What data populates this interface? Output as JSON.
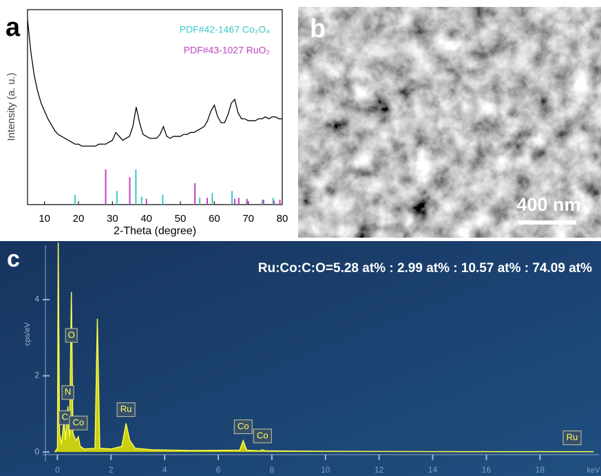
{
  "chart_data": [
    {
      "type": "line",
      "panel_label": "a",
      "ylabel": "Intensity (a. u.)",
      "xlabel": "2-Theta (degree)",
      "xlim": [
        5,
        80
      ],
      "xticks": [
        10,
        20,
        30,
        40,
        50,
        60,
        70,
        80
      ],
      "ylim": [
        0,
        100
      ],
      "color": "#000000",
      "x": [
        5,
        6,
        7,
        8,
        9,
        10,
        11,
        12,
        13,
        14,
        15,
        16,
        17,
        18,
        19,
        20,
        21,
        22,
        23,
        24,
        25,
        26,
        27,
        28,
        29,
        30,
        31,
        32,
        33,
        34,
        35,
        36,
        37,
        38,
        39,
        40,
        41,
        42,
        43,
        44,
        45,
        46,
        47,
        48,
        49,
        50,
        51,
        52,
        53,
        54,
        55,
        56,
        57,
        58,
        59,
        60,
        61,
        62,
        63,
        64,
        65,
        66,
        67,
        68,
        69,
        70,
        71,
        72,
        73,
        74,
        75,
        76,
        77,
        78,
        79,
        80
      ],
      "values": [
        95,
        78,
        66,
        58,
        52,
        48,
        44,
        41,
        38,
        36,
        35,
        34,
        33,
        32,
        31,
        31,
        30,
        30,
        30,
        30,
        30,
        31,
        31,
        31,
        32,
        33,
        37,
        35,
        33,
        34,
        35,
        40,
        50,
        42,
        36,
        35,
        34,
        34,
        34,
        36,
        40,
        35,
        34,
        35,
        35,
        35,
        36,
        36,
        37,
        37,
        38,
        39,
        40,
        43,
        48,
        51,
        45,
        42,
        42,
        46,
        52,
        54,
        47,
        44,
        44,
        43,
        43,
        43,
        44,
        44,
        45,
        44,
        45,
        45,
        44,
        44
      ],
      "references": [
        {
          "name": "PDF#42-1467 Co₃O₄",
          "color": "#3cc8c8",
          "positions": [
            19.0,
            31.3,
            36.9,
            38.6,
            44.8,
            55.7,
            59.4,
            65.2,
            74.1,
            77.3
          ],
          "values": [
            5,
            7,
            18,
            4,
            5,
            3.5,
            6,
            7,
            2.5,
            3.5
          ]
        },
        {
          "name": "PDF#43-1027 RuO₂",
          "color": "#c040c0",
          "positions": [
            28.0,
            35.1,
            40.0,
            54.3,
            57.9,
            66.0,
            67.2,
            69.6,
            74.5,
            77.6,
            79.3
          ],
          "values": [
            18,
            14,
            3,
            11,
            3.5,
            3,
            3.5,
            3,
            2.5,
            2,
            2.5
          ]
        }
      ]
    },
    {
      "type": "area",
      "panel_label": "c",
      "ylabel": "cps/eV",
      "xlabel": "keV",
      "annotation": "Ru:Co:C:O=5.28 at% : 2.99 at% : 10.57 at% : 74.09 at%",
      "xlim": [
        -0.55,
        20.2
      ],
      "xticks": [
        0,
        2,
        4,
        6,
        8,
        10,
        12,
        14,
        16,
        18
      ],
      "ylim": [
        -0.25,
        5.5
      ],
      "yticks": [
        0,
        2,
        4
      ],
      "color": "#e8e800",
      "x": [
        -0.1,
        0,
        0.03,
        0.08,
        0.15,
        0.25,
        0.3,
        0.39,
        0.45,
        0.52,
        0.58,
        0.68,
        0.78,
        0.85,
        1.0,
        1.4,
        1.49,
        1.58,
        2.0,
        2.4,
        2.56,
        2.7,
        2.9,
        3.5,
        5,
        6.8,
        6.93,
        7.06,
        7.55,
        7.65,
        7.75,
        10,
        15,
        20
      ],
      "values": [
        0,
        0.1,
        5.6,
        0.5,
        0.2,
        0.9,
        0.3,
        1.2,
        0.4,
        4.2,
        0.5,
        0.3,
        0.4,
        0.15,
        0.08,
        0.1,
        3.5,
        0.1,
        0.08,
        0.15,
        0.75,
        0.3,
        0.1,
        0.06,
        0.04,
        0.05,
        0.3,
        0.05,
        0.03,
        0.06,
        0.03,
        0.02,
        0.01,
        0.01
      ],
      "peaks": [
        {
          "label": "C",
          "x": 0.28
        },
        {
          "label": "N",
          "x": 0.39
        },
        {
          "label": "O",
          "x": 0.52
        },
        {
          "label": "Co",
          "x": 0.78
        },
        {
          "label": "Ru",
          "x": 2.56
        },
        {
          "label": "Co",
          "x": 6.93
        },
        {
          "label": "Co",
          "x": 7.65
        },
        {
          "label": "Ru",
          "x": 19.2
        }
      ]
    }
  ],
  "image": {
    "label": "b",
    "scale_bar": "400 nm"
  }
}
